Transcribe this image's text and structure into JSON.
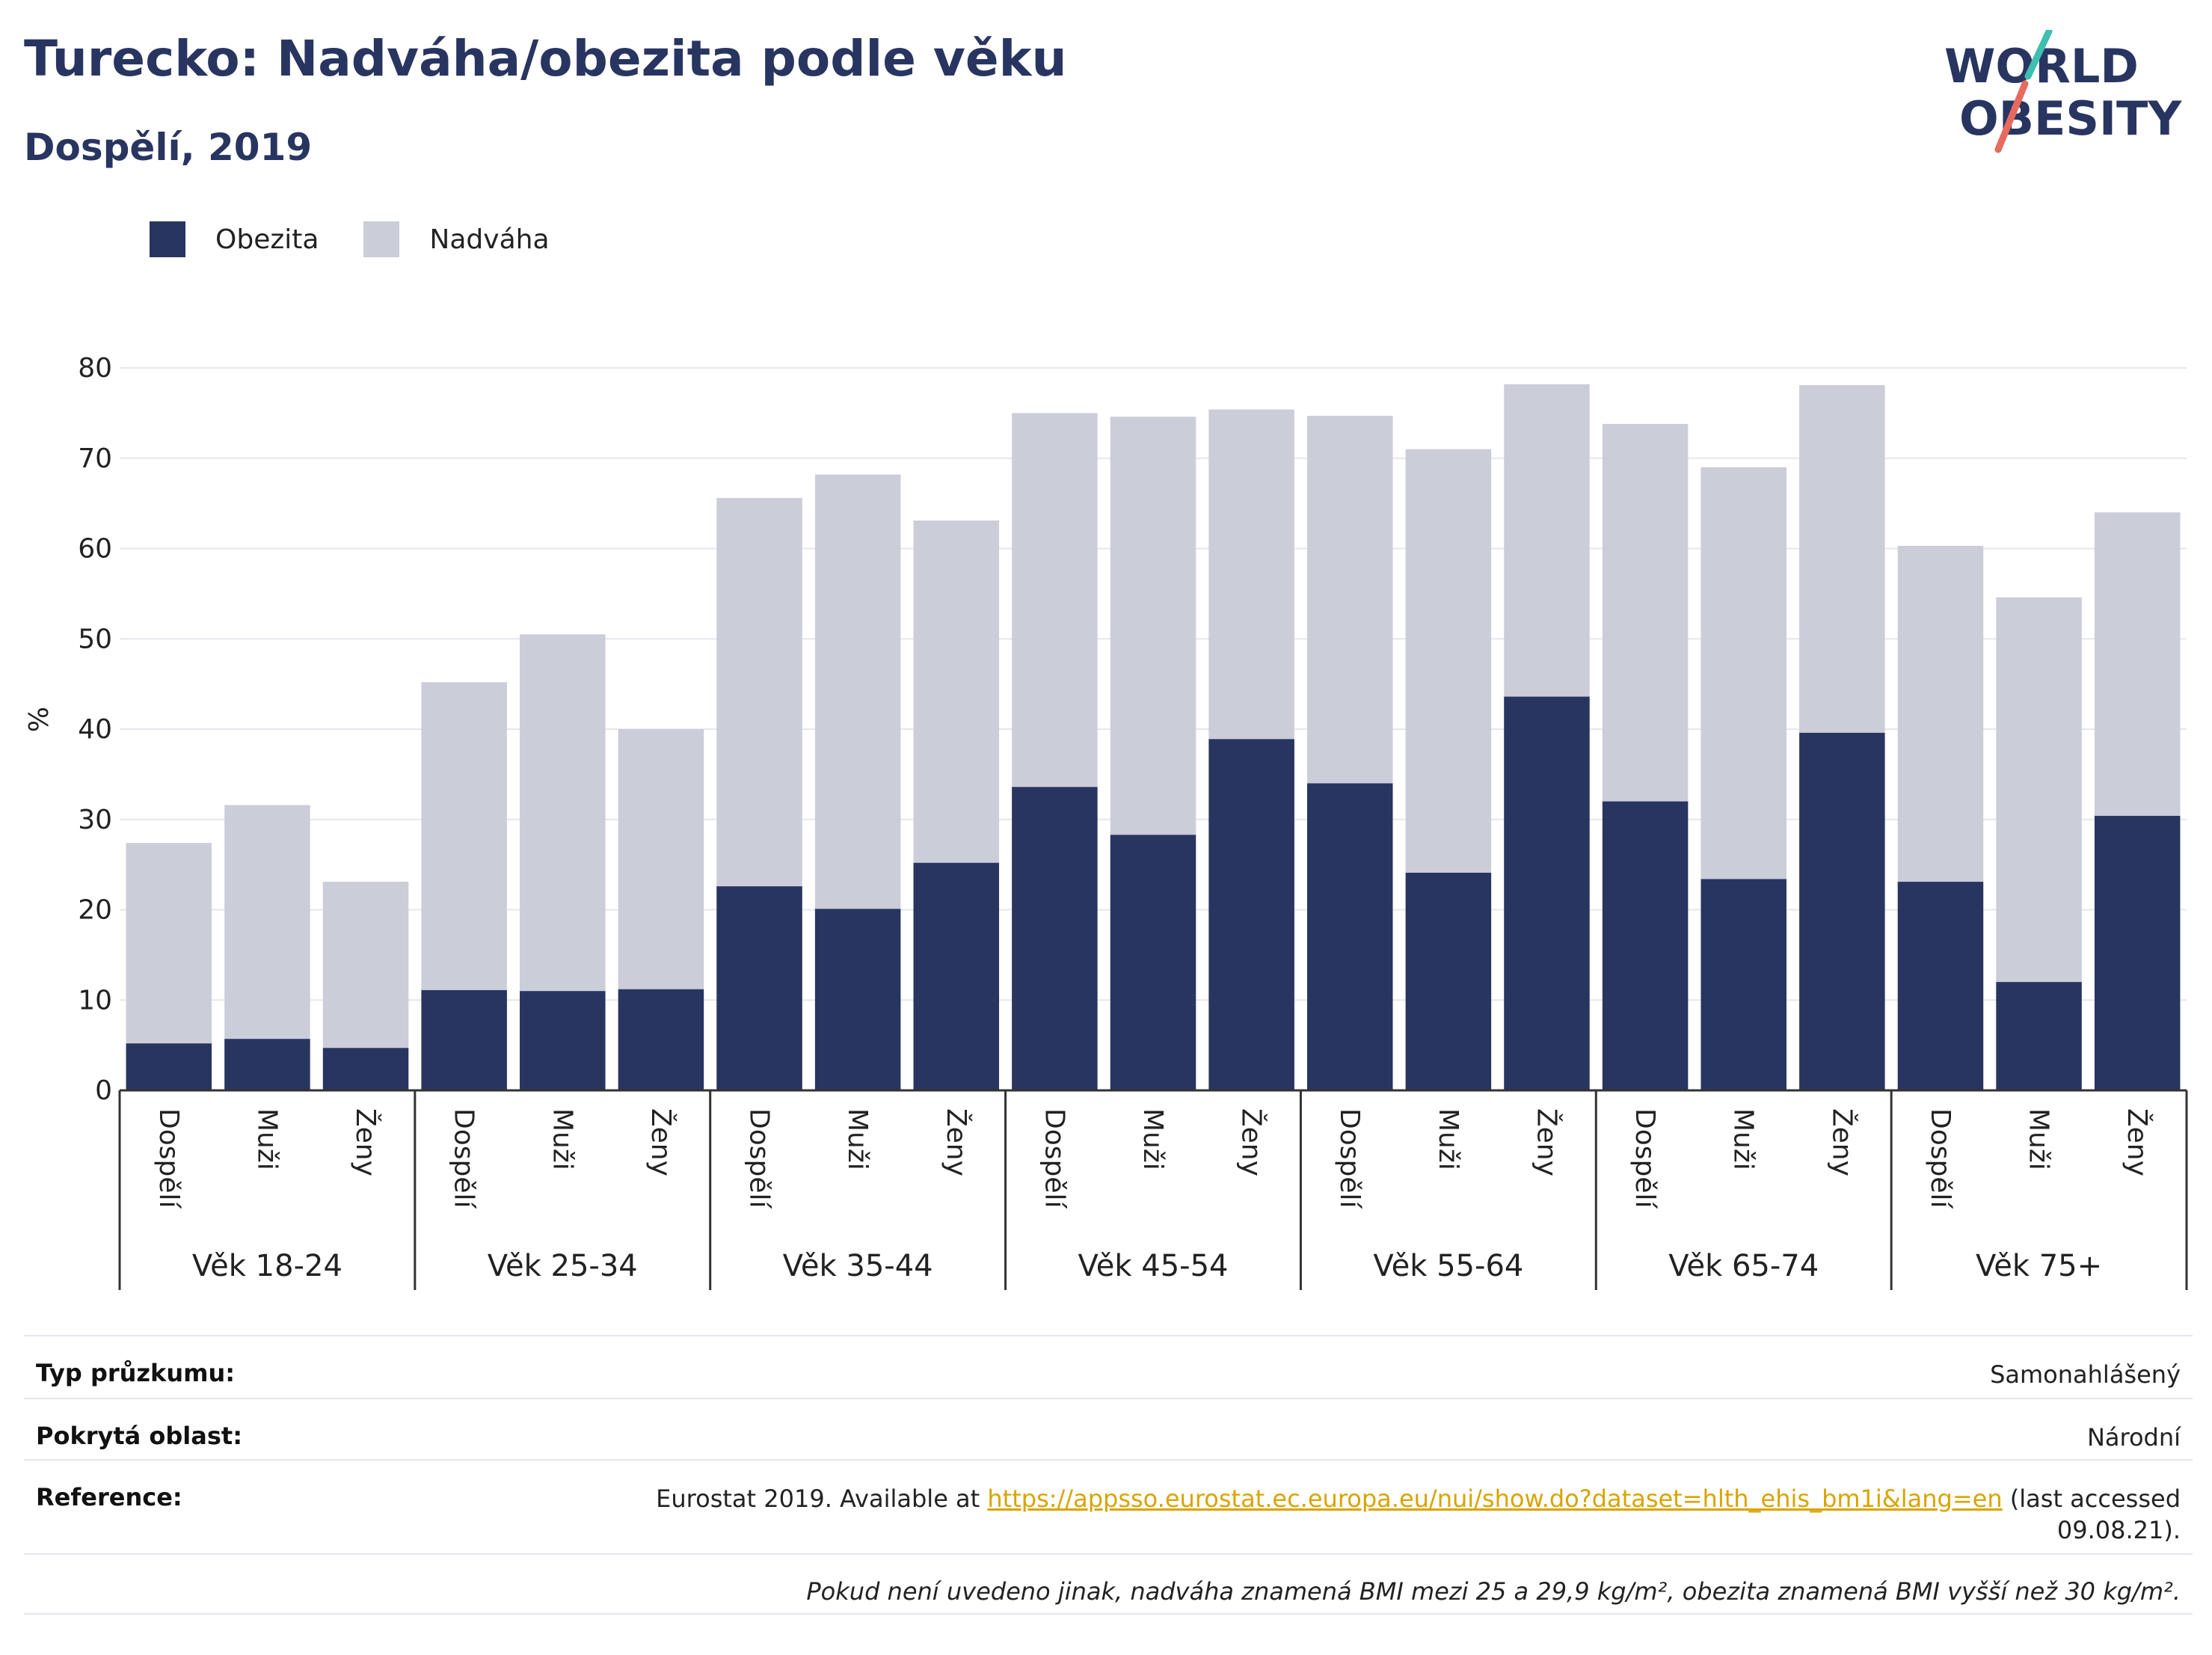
{
  "header": {
    "title": "Turecko: Nadváha/obezita podle věku",
    "subtitle": "Dospělí, 2019"
  },
  "logo": {
    "line1": "WORLD",
    "line2": "OBESITY"
  },
  "colors": {
    "obesity": "#283561",
    "overweight": "#cbcdd9",
    "accent_teal": "#3fbfb0",
    "accent_coral": "#e8695e"
  },
  "legend": [
    {
      "label": "Obezita",
      "color": "#283561"
    },
    {
      "label": "Nadváha",
      "color": "#cbcdd9"
    }
  ],
  "chart_data": {
    "type": "bar",
    "stacked": true,
    "title": "Turecko: Nadváha/obezita podle věku",
    "subtitle": "Dospělí, 2019",
    "ylabel": "%",
    "ylim": [
      0,
      80
    ],
    "yticks": [
      0,
      10,
      20,
      30,
      40,
      50,
      60,
      70,
      80
    ],
    "grid": true,
    "legend_position": "top-left",
    "groups": [
      "Věk 18-24",
      "Věk 25-34",
      "Věk 35-44",
      "Věk 45-54",
      "Věk 55-64",
      "Věk 65-74",
      "Věk 75+"
    ],
    "subcategories": [
      "Dospělí",
      "Muži",
      "Ženy"
    ],
    "series": [
      {
        "name": "Obezita",
        "values": [
          5.2,
          5.7,
          4.7,
          11.1,
          11.0,
          11.2,
          22.6,
          20.1,
          25.2,
          33.6,
          28.3,
          38.9,
          34.0,
          24.1,
          43.6,
          32.0,
          23.4,
          39.6,
          23.1,
          12.0,
          30.4
        ]
      },
      {
        "name": "Nadváha",
        "values": [
          22.2,
          25.9,
          18.4,
          34.1,
          39.5,
          28.8,
          43.0,
          48.1,
          37.9,
          41.4,
          46.3,
          36.5,
          40.7,
          46.9,
          34.6,
          41.8,
          45.6,
          38.5,
          37.2,
          42.6,
          33.6
        ]
      }
    ]
  },
  "meta": {
    "survey_type_label": "Typ průzkumu:",
    "survey_type_value": "Samonahlášený",
    "coverage_label": "Pokrytá oblast:",
    "coverage_value": "Národní",
    "reference_label": "Reference:",
    "reference_prefix": "Eurostat 2019. Available at ",
    "reference_link": "https://appsso.eurostat.ec.europa.eu/nui/show.do?dataset=hlth_ehis_bm1i&lang=en",
    "reference_suffix_1": " (last accessed",
    "reference_suffix_2": "09.08.21).",
    "note": "Pokud není uvedeno jinak, nadváha znamená BMI mezi 25 a 29,9 kg/m², obezita znamená BMI vyšší než 30 kg/m²."
  }
}
